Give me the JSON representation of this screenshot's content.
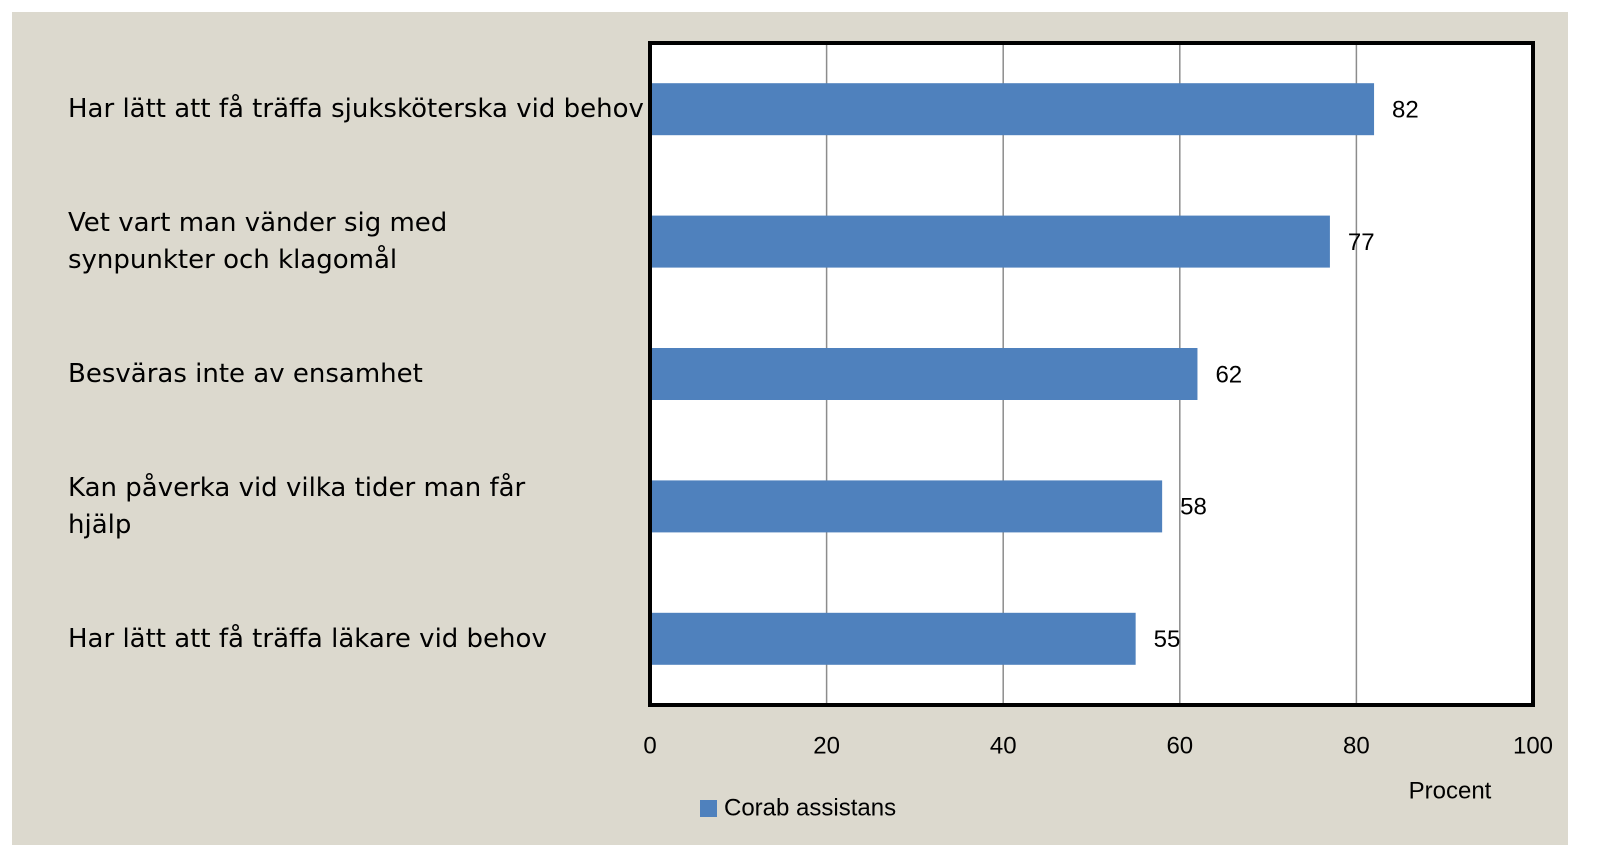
{
  "chart_data": {
    "type": "hbar",
    "categories": [
      "Har lätt att få träffa sjuksköterska vid behov",
      "Vet vart man vänder sig med\nsynpunkter och klagomål",
      "Besväras inte av ensamhet",
      "Kan påverka vid vilka tider man får\nhjälp",
      "Har lätt att få träffa läkare vid behov"
    ],
    "series": [
      {
        "name": "Corab assistans",
        "color": "#4f81bd",
        "values": [
          82,
          77,
          62,
          58,
          55
        ]
      }
    ],
    "xlim": [
      0,
      100
    ],
    "xticks": [
      0,
      20,
      40,
      60,
      80,
      100
    ],
    "xlabel": "Procent",
    "grid": true,
    "legend": "bottom"
  }
}
